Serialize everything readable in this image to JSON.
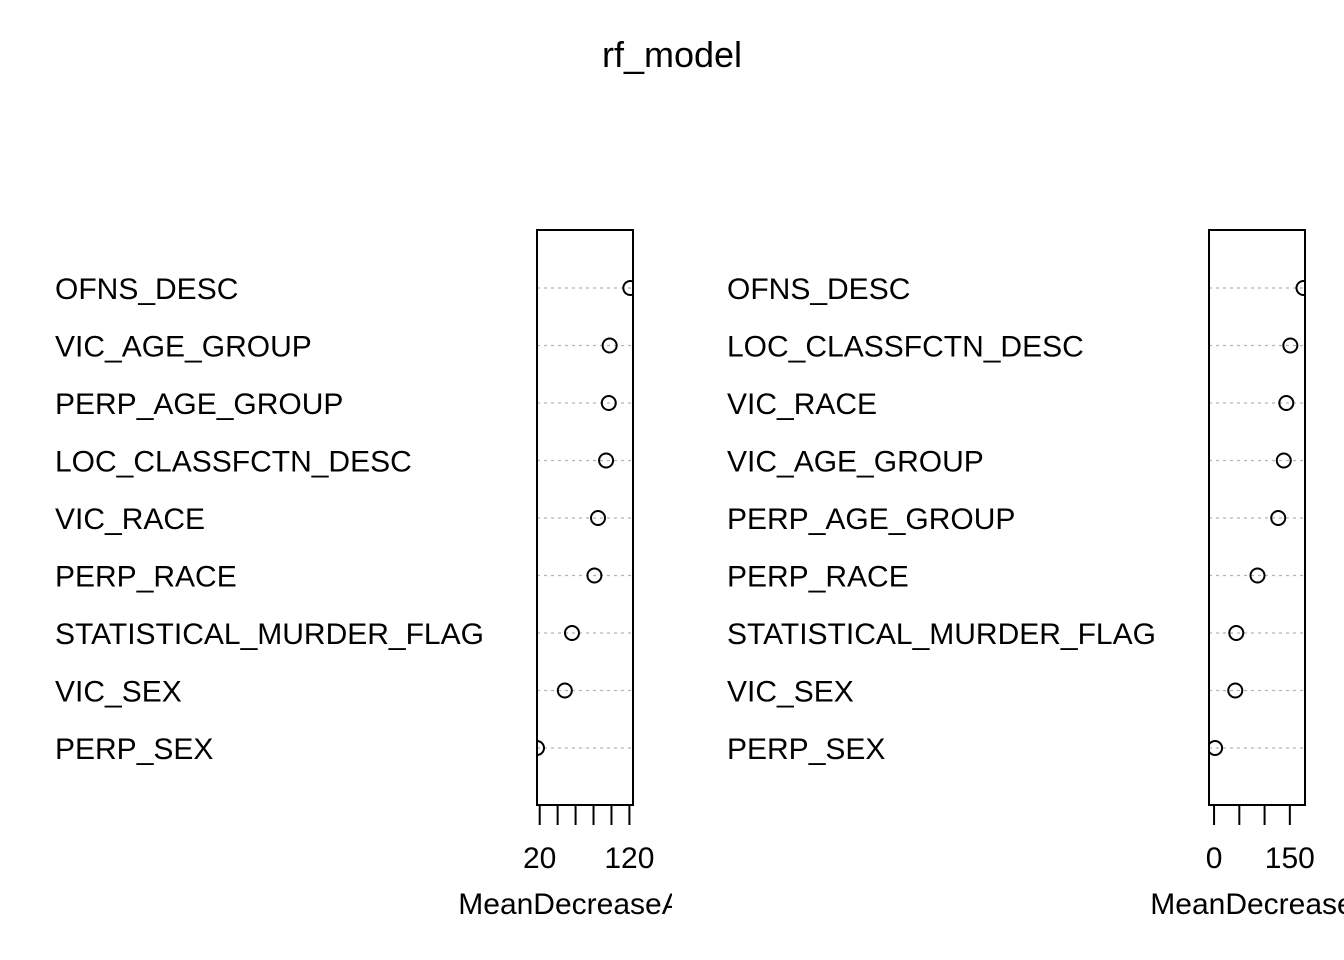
{
  "title": "rf_model",
  "colors": {
    "axis": "#000000",
    "guide": "#b3b3b3",
    "point": "#000000",
    "background": "#ffffff"
  },
  "chart_data": [
    {
      "type": "scatter",
      "style": "dotchart",
      "title": "",
      "xlabel": "MeanDecreaseAccuracy",
      "xlabel_visible": "MeanDecreaseAcc",
      "ylabel": "",
      "xlim": [
        17,
        124
      ],
      "xticks": [
        20,
        40,
        60,
        80,
        100,
        120
      ],
      "xtick_labels_shown": [
        "20",
        "120"
      ],
      "grid": "dotted horizontal guides",
      "categories": [
        "OFNS_DESC",
        "VIC_AGE_GROUP",
        "PERP_AGE_GROUP",
        "LOC_CLASSFCTN_DESC",
        "VIC_RACE",
        "PERP_RACE",
        "STATISTICAL_MURDER_FLAG",
        "VIC_SEX",
        "PERP_SEX"
      ],
      "values": [
        121,
        98,
        97,
        94,
        85,
        81,
        56,
        48,
        17
      ]
    },
    {
      "type": "scatter",
      "style": "dotchart",
      "title": "",
      "xlabel": "MeanDecreaseGini",
      "xlabel_visible": "MeanDecrease(",
      "ylabel": "",
      "xlim": [
        -10,
        180
      ],
      "xticks": [
        0,
        50,
        100,
        150
      ],
      "xtick_labels_shown": [
        "0",
        "150"
      ],
      "grid": "dotted horizontal guides",
      "categories": [
        "OFNS_DESC",
        "LOC_CLASSFCTN_DESC",
        "VIC_RACE",
        "VIC_AGE_GROUP",
        "PERP_AGE_GROUP",
        "PERP_RACE",
        "STATISTICAL_MURDER_FLAG",
        "VIC_SEX",
        "PERP_SEX"
      ],
      "values": [
        177,
        151,
        143,
        138,
        127,
        86,
        44,
        42,
        2
      ]
    }
  ]
}
